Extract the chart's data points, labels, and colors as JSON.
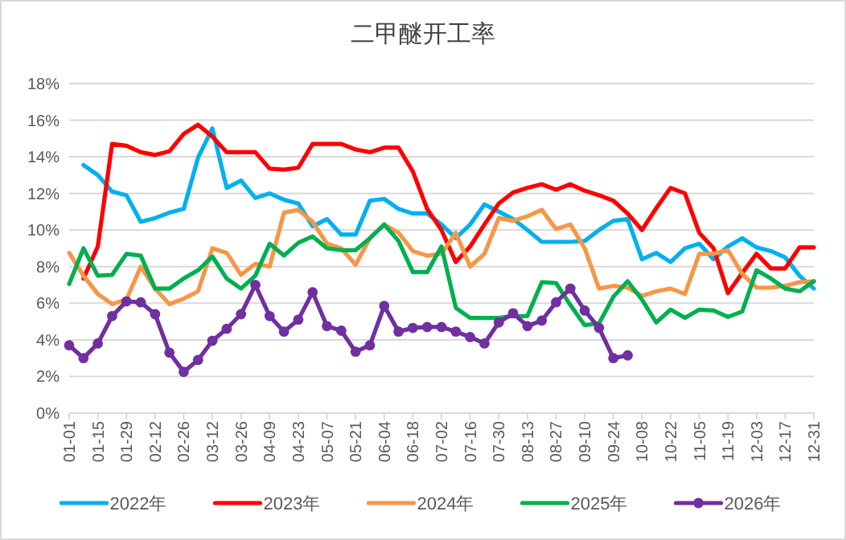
{
  "chart_data": {
    "type": "line",
    "title": "二甲醚开工率",
    "x": [
      "--01-01",
      "--01-08",
      "--01-15",
      "--01-22",
      "--01-29",
      "--02-05",
      "--02-12",
      "--02-19",
      "--02-26",
      "--03-05",
      "--03-12",
      "--03-19",
      "--03-26",
      "--04-02",
      "--04-09",
      "--04-16",
      "--04-23",
      "--04-30",
      "--05-07",
      "--05-14",
      "--05-21",
      "--05-28",
      "--06-04",
      "--06-11",
      "--06-18",
      "--06-25",
      "--07-02",
      "--07-09",
      "--07-16",
      "--07-23",
      "--07-30",
      "--08-06",
      "--08-13",
      "--08-20",
      "--08-27",
      "--09-03",
      "--09-10",
      "--09-17",
      "--09-24",
      "--10-01",
      "--10-08",
      "--10-15",
      "--10-22",
      "--10-29",
      "--11-05",
      "--11-12",
      "--11-19",
      "--11-26",
      "--12-03",
      "--12-10",
      "--12-17",
      "--12-24",
      "--12-31"
    ],
    "series": [
      {
        "name": "2022年",
        "color": "#00b0f0",
        "marker": "none",
        "values": [
          null,
          13.55,
          13.0,
          12.1,
          11.9,
          10.45,
          10.65,
          10.95,
          11.15,
          13.95,
          15.55,
          12.3,
          12.7,
          11.75,
          12.0,
          11.65,
          11.45,
          10.2,
          10.6,
          9.75,
          9.75,
          11.6,
          11.7,
          11.15,
          10.9,
          10.9,
          10.3,
          9.55,
          10.3,
          11.4,
          11.0,
          10.6,
          10.0,
          9.35,
          9.35,
          9.35,
          9.4,
          10.0,
          10.5,
          10.6,
          8.4,
          8.75,
          8.25,
          9.0,
          9.25,
          8.4,
          9.1,
          9.55,
          9.05,
          8.85,
          8.5,
          7.5,
          6.8
        ]
      },
      {
        "name": "2023年",
        "color": "#ff0000",
        "marker": "none",
        "values": [
          null,
          7.35,
          9.1,
          14.7,
          14.6,
          14.25,
          14.1,
          14.3,
          15.25,
          15.75,
          15.1,
          14.25,
          14.25,
          14.25,
          13.35,
          13.3,
          13.4,
          14.7,
          14.7,
          14.7,
          14.4,
          14.25,
          14.5,
          14.5,
          13.2,
          11.15,
          10.0,
          8.25,
          9.1,
          10.3,
          11.45,
          12.05,
          12.3,
          12.5,
          12.2,
          12.5,
          12.15,
          11.9,
          11.6,
          10.9,
          10.0,
          11.2,
          12.3,
          12.0,
          9.85,
          9.0,
          6.55,
          7.65,
          8.7,
          7.9,
          7.9,
          9.05,
          9.05
        ]
      },
      {
        "name": "2024年",
        "color": "#f79646",
        "marker": "none",
        "values": [
          8.75,
          7.5,
          6.5,
          5.95,
          6.2,
          8.0,
          6.8,
          5.95,
          6.25,
          6.65,
          9.0,
          8.75,
          7.55,
          8.15,
          8.0,
          10.95,
          11.1,
          10.45,
          9.25,
          9.0,
          8.1,
          9.55,
          10.3,
          9.85,
          8.85,
          8.6,
          8.7,
          9.85,
          8.0,
          8.7,
          10.65,
          10.5,
          10.75,
          11.1,
          10.05,
          10.3,
          9.0,
          6.8,
          6.95,
          6.85,
          6.4,
          6.65,
          6.8,
          6.5,
          8.7,
          8.7,
          8.9,
          7.6,
          6.85,
          6.85,
          6.95,
          7.15,
          7.2
        ]
      },
      {
        "name": "2025年",
        "color": "#00b050",
        "marker": "none",
        "values": [
          7.05,
          9.0,
          7.5,
          7.55,
          8.7,
          8.6,
          6.8,
          6.8,
          7.35,
          7.8,
          8.55,
          7.35,
          6.8,
          7.5,
          9.25,
          8.6,
          9.3,
          9.65,
          9.0,
          8.9,
          8.9,
          9.55,
          10.3,
          9.4,
          7.7,
          7.7,
          9.1,
          5.75,
          5.2,
          5.2,
          5.2,
          5.3,
          5.3,
          7.15,
          7.1,
          5.9,
          4.8,
          4.9,
          6.35,
          7.2,
          6.2,
          4.95,
          5.65,
          5.2,
          5.65,
          5.6,
          5.25,
          5.55,
          7.8,
          7.35,
          6.8,
          6.65,
          7.2
        ]
      },
      {
        "name": "2026年",
        "color": "#7030a0",
        "marker": "circle",
        "values": [
          3.7,
          3.0,
          3.8,
          5.3,
          6.1,
          6.05,
          5.4,
          3.3,
          2.25,
          2.9,
          3.95,
          4.6,
          5.4,
          7.0,
          5.3,
          4.45,
          5.1,
          6.6,
          4.75,
          4.5,
          3.35,
          3.7,
          5.85,
          4.45,
          4.65,
          4.7,
          4.7,
          4.45,
          4.15,
          3.8,
          4.95,
          5.45,
          4.75,
          5.05,
          6.05,
          6.8,
          5.6,
          4.65,
          3.0,
          3.15,
          null,
          null,
          null,
          null,
          null,
          null,
          null,
          null,
          null,
          null,
          null,
          null,
          null
        ]
      }
    ],
    "xlim": [
      "--01-01",
      "--12-31"
    ],
    "xticks": [
      {
        "value": "--01-01",
        "label": "01-01"
      },
      {
        "value": "--01-15",
        "label": "01-15"
      },
      {
        "value": "--01-29",
        "label": "01-29"
      },
      {
        "value": "--02-12",
        "label": "02-12"
      },
      {
        "value": "--02-26",
        "label": "02-26"
      },
      {
        "value": "--03-12",
        "label": "03-12"
      },
      {
        "value": "--03-26",
        "label": "03-26"
      },
      {
        "value": "--04-09",
        "label": "04-09"
      },
      {
        "value": "--04-23",
        "label": "04-23"
      },
      {
        "value": "--05-07",
        "label": "05-07"
      },
      {
        "value": "--05-21",
        "label": "05-21"
      },
      {
        "value": "--06-04",
        "label": "06-04"
      },
      {
        "value": "--06-18",
        "label": "06-18"
      },
      {
        "value": "--07-02",
        "label": "07-02"
      },
      {
        "value": "--07-16",
        "label": "07-16"
      },
      {
        "value": "--07-30",
        "label": "07-30"
      },
      {
        "value": "--08-13",
        "label": "08-13"
      },
      {
        "value": "--08-27",
        "label": "08-27"
      },
      {
        "value": "--09-10",
        "label": "09-10"
      },
      {
        "value": "--09-24",
        "label": "09-24"
      },
      {
        "value": "--10-08",
        "label": "10-08"
      },
      {
        "value": "--10-22",
        "label": "10-22"
      },
      {
        "value": "--11-05",
        "label": "11-05"
      },
      {
        "value": "--11-19",
        "label": "11-19"
      },
      {
        "value": "--12-03",
        "label": "12-03"
      },
      {
        "value": "--12-17",
        "label": "12-17"
      },
      {
        "value": "--12-31",
        "label": "12-31"
      }
    ],
    "ylim": [
      0,
      18
    ],
    "yticks": [
      {
        "value": 0,
        "label": "0%"
      },
      {
        "value": 2,
        "label": "2%"
      },
      {
        "value": 4,
        "label": "4%"
      },
      {
        "value": 6,
        "label": "6%"
      },
      {
        "value": 8,
        "label": "8%"
      },
      {
        "value": 10,
        "label": "10%"
      },
      {
        "value": 12,
        "label": "12%"
      },
      {
        "value": 14,
        "label": "14%"
      },
      {
        "value": 16,
        "label": "16%"
      },
      {
        "value": 18,
        "label": "18%"
      }
    ],
    "grid": "y",
    "legend": "bottom"
  }
}
